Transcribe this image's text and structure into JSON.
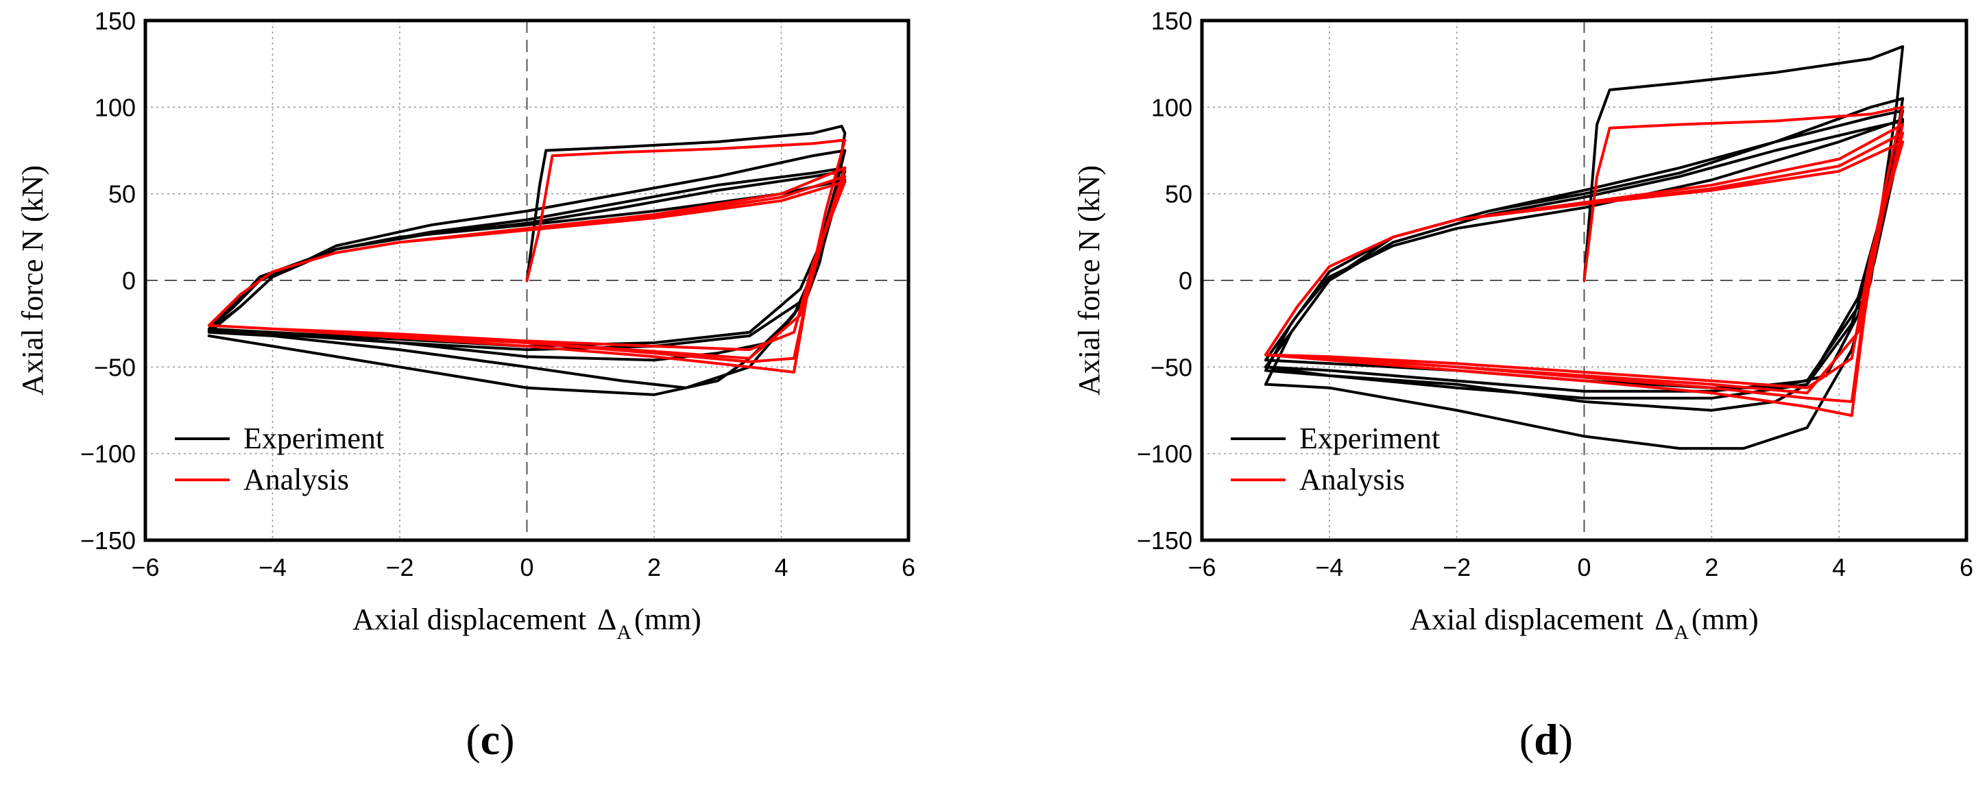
{
  "chart_data": [
    {
      "type": "line",
      "panel": "c",
      "panel_label_open": "(",
      "panel_label_close": ")",
      "xlabel": "Axial displacement",
      "xlabel_symbol": "Δ",
      "xlabel_subscript": "A",
      "xlabel_unit": "(mm)",
      "ylabel": "Axial force N (kN)",
      "xlim": [
        -6,
        6
      ],
      "ylim": [
        -150,
        150
      ],
      "xticks": [
        -6,
        -4,
        -2,
        0,
        2,
        4,
        6
      ],
      "yticks": [
        -150,
        -100,
        -50,
        0,
        50,
        100,
        150
      ],
      "xtick_labels": [
        "−6",
        "−4",
        "−2",
        "0",
        "2",
        "4",
        "6"
      ],
      "ytick_labels": [
        "−150",
        "−100",
        "−50",
        "0",
        "50",
        "100",
        "150"
      ],
      "grid": true,
      "legend_position": "bottom-left",
      "series": [
        {
          "name": "Experiment",
          "color": "#000000",
          "x": [
            0,
            0.2,
            0.3,
            1.5,
            3,
            4.5,
            4.95,
            5.0,
            4.8,
            4.5,
            4.2,
            3.5,
            2.5,
            1.5,
            0,
            -2,
            -4,
            -5,
            -4.5,
            -4,
            -3,
            -1.5,
            0,
            1.5,
            3,
            4.5,
            5.0,
            4.9,
            4.6,
            4.3,
            3.5,
            2,
            0,
            -2,
            -4,
            -5,
            -4.6,
            -4.2,
            -3,
            -1.5,
            0,
            1.5,
            3,
            4.5,
            5.0,
            4.85,
            4.6,
            4.4,
            3.5,
            2,
            0,
            -2,
            -4,
            -5,
            -4.5,
            -4,
            -3,
            -1.5,
            0,
            1.5,
            3,
            4.5,
            5.0,
            4.85,
            4.55,
            4.3,
            3.8,
            3,
            2,
            0,
            -2,
            -4,
            -5,
            -4.5,
            -4.2,
            -3,
            -2,
            0,
            2,
            4,
            5.0,
            4.8,
            4.5,
            4.2,
            3.5,
            3,
            2,
            0,
            -2,
            -4,
            -5
          ],
          "y": [
            0,
            55,
            75,
            77,
            80,
            85,
            89,
            85,
            40,
            0,
            -20,
            -50,
            -62,
            -58,
            -50,
            -40,
            -32,
            -30,
            -15,
            2,
            20,
            32,
            40,
            50,
            60,
            72,
            75,
            60,
            20,
            -5,
            -30,
            -36,
            -38,
            -34,
            -30,
            -28,
            -15,
            0,
            18,
            28,
            35,
            45,
            55,
            62,
            65,
            50,
            10,
            -10,
            -32,
            -38,
            -40,
            -36,
            -31,
            -29,
            -15,
            2,
            18,
            27,
            33,
            42,
            52,
            60,
            63,
            45,
            5,
            -15,
            -36,
            -42,
            -46,
            -44,
            -36,
            -30,
            -28,
            -10,
            2,
            18,
            25,
            32,
            40,
            50,
            58,
            40,
            5,
            -20,
            -45,
            -58,
            -66,
            -62,
            -50,
            -38,
            -32
          ]
        },
        {
          "name": "Analysis",
          "color": "#ff0000",
          "x": [
            0,
            0.2,
            0.4,
            1.5,
            3,
            4.5,
            5.0,
            4.7,
            4.4,
            4.2,
            3.5,
            2,
            0,
            -2,
            -4,
            -5,
            -4.5,
            -4,
            -3,
            -2,
            0,
            2,
            4,
            5.0,
            4.7,
            4.4,
            4.2,
            3.5,
            2,
            0,
            -2,
            -4,
            -5,
            -4.5,
            -4,
            -3,
            -2,
            0,
            2,
            4,
            5.0,
            4.6,
            4.3,
            3.5,
            2,
            0,
            -2,
            -4,
            -5,
            -4.5,
            -4,
            -3,
            -2,
            0,
            2,
            4,
            5.0,
            4.5,
            4.2,
            3.5,
            2,
            0,
            -2,
            -4,
            -5
          ],
          "y": [
            0,
            30,
            72,
            74,
            76,
            79,
            81,
            40,
            -10,
            -53,
            -50,
            -44,
            -38,
            -33,
            -28,
            -26,
            -8,
            5,
            16,
            22,
            30,
            38,
            50,
            65,
            30,
            -10,
            -45,
            -47,
            -42,
            -36,
            -32,
            -28,
            -26,
            -8,
            5,
            16,
            22,
            29,
            37,
            48,
            60,
            20,
            -20,
            -45,
            -41,
            -36,
            -32,
            -28,
            -26,
            -8,
            5,
            16,
            22,
            29,
            36,
            46,
            57,
            10,
            -30,
            -40,
            -38,
            -35,
            -31,
            -28,
            -26
          ]
        }
      ]
    },
    {
      "type": "line",
      "panel": "d",
      "panel_label_open": "(",
      "panel_label_close": ")",
      "xlabel": "Axial displacement",
      "xlabel_symbol": "Δ",
      "xlabel_subscript": "A",
      "xlabel_unit": "(mm)",
      "ylabel": "Axial force N (kN)",
      "xlim": [
        -6,
        6
      ],
      "ylim": [
        -150,
        150
      ],
      "xticks": [
        -6,
        -4,
        -2,
        0,
        2,
        4,
        6
      ],
      "yticks": [
        -150,
        -100,
        -50,
        0,
        50,
        100,
        150
      ],
      "xtick_labels": [
        "−6",
        "−4",
        "−2",
        "0",
        "2",
        "4",
        "6"
      ],
      "ytick_labels": [
        "−150",
        "−100",
        "−50",
        "0",
        "50",
        "100",
        "150"
      ],
      "grid": true,
      "legend_position": "bottom-left",
      "series": [
        {
          "name": "Experiment",
          "color": "#000000",
          "x": [
            0,
            0.2,
            0.4,
            1.5,
            3,
            4.5,
            5.0,
            4.9,
            4.7,
            4.5,
            4.2,
            3.5,
            2.5,
            1.5,
            0,
            -2,
            -4,
            -5,
            -4.6,
            -4,
            -3,
            -1.5,
            0,
            1.5,
            3,
            4.5,
            5.0,
            4.9,
            4.6,
            4.3,
            3.5,
            2,
            0,
            -2,
            -4,
            -5,
            -4.6,
            -4,
            -3,
            -1.5,
            0,
            1.5,
            3,
            4.5,
            5.0,
            4.85,
            4.6,
            4.4,
            3.5,
            2,
            0,
            -2,
            -4,
            -5,
            -4.5,
            -4,
            -3,
            -1.5,
            0,
            1.5,
            3,
            4.5,
            5.0,
            4.85,
            4.55,
            4.3,
            3.8,
            3,
            2,
            0,
            -2,
            -4,
            -5,
            -4.5,
            -4,
            -3,
            -2,
            0,
            2,
            4,
            5.0,
            4.8,
            4.5,
            4.2,
            3.5,
            3,
            2,
            0,
            -2,
            -4,
            -5
          ],
          "y": [
            0,
            90,
            110,
            114,
            120,
            128,
            135,
            100,
            50,
            0,
            -40,
            -85,
            -97,
            -97,
            -90,
            -75,
            -62,
            -60,
            -30,
            0,
            25,
            40,
            50,
            62,
            80,
            100,
            105,
            80,
            30,
            -10,
            -60,
            -68,
            -68,
            -62,
            -55,
            -52,
            -25,
            5,
            25,
            40,
            52,
            65,
            80,
            94,
            98,
            70,
            20,
            -10,
            -58,
            -64,
            -64,
            -58,
            -52,
            -50,
            -25,
            0,
            22,
            38,
            48,
            60,
            75,
            88,
            92,
            60,
            10,
            -20,
            -55,
            -62,
            -62,
            -58,
            -52,
            -48,
            -46,
            -20,
            2,
            20,
            30,
            42,
            58,
            80,
            93,
            60,
            10,
            -25,
            -60,
            -70,
            -75,
            -70,
            -60,
            -55,
            -50
          ]
        },
        {
          "name": "Analysis",
          "color": "#ff0000",
          "x": [
            0,
            0.2,
            0.4,
            1.5,
            3,
            4.5,
            5.0,
            4.7,
            4.4,
            4.2,
            3.5,
            2,
            0,
            -2,
            -4,
            -5,
            -4.5,
            -4,
            -3,
            -2,
            0,
            2,
            4,
            5.0,
            4.7,
            4.4,
            4.2,
            3.5,
            2,
            0,
            -2,
            -4,
            -5,
            -4.5,
            -4,
            -3,
            -2,
            0,
            2,
            4,
            5.0,
            4.6,
            4.3,
            3.5,
            2,
            0,
            -2,
            -4,
            -5,
            -4.5,
            -4,
            -3,
            -2,
            0,
            2,
            4,
            5.0,
            4.5,
            4.2,
            3.5,
            2,
            0,
            -2,
            -4,
            -5
          ],
          "y": [
            0,
            60,
            88,
            90,
            92,
            96,
            100,
            50,
            -20,
            -78,
            -73,
            -65,
            -58,
            -52,
            -46,
            -43,
            -15,
            8,
            25,
            35,
            45,
            55,
            70,
            90,
            40,
            -15,
            -70,
            -68,
            -62,
            -56,
            -50,
            -45,
            -43,
            -15,
            8,
            25,
            35,
            44,
            53,
            66,
            85,
            30,
            -30,
            -65,
            -60,
            -55,
            -50,
            -45,
            -43,
            -15,
            8,
            25,
            35,
            44,
            52,
            63,
            80,
            15,
            -45,
            -62,
            -58,
            -53,
            -48,
            -44,
            -43
          ]
        }
      ]
    }
  ]
}
